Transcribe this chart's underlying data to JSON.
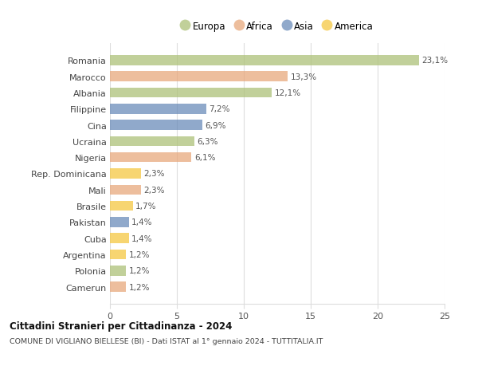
{
  "categories": [
    "Romania",
    "Marocco",
    "Albania",
    "Filippine",
    "Cina",
    "Ucraina",
    "Nigeria",
    "Rep. Dominicana",
    "Mali",
    "Brasile",
    "Pakistan",
    "Cuba",
    "Argentina",
    "Polonia",
    "Camerun"
  ],
  "values": [
    23.1,
    13.3,
    12.1,
    7.2,
    6.9,
    6.3,
    6.1,
    2.3,
    2.3,
    1.7,
    1.4,
    1.4,
    1.2,
    1.2,
    1.2
  ],
  "labels": [
    "23,1%",
    "13,3%",
    "12,1%",
    "7,2%",
    "6,9%",
    "6,3%",
    "6,1%",
    "2,3%",
    "2,3%",
    "1,7%",
    "1,4%",
    "1,4%",
    "1,2%",
    "1,2%",
    "1,2%"
  ],
  "continents": [
    "Europa",
    "Africa",
    "Europa",
    "Asia",
    "Asia",
    "Europa",
    "Africa",
    "America",
    "Africa",
    "America",
    "Asia",
    "America",
    "America",
    "Europa",
    "Africa"
  ],
  "colors": {
    "Europa": "#adc178",
    "Africa": "#e8a87c",
    "Asia": "#6b8cba",
    "America": "#f5c842"
  },
  "legend_order": [
    "Europa",
    "Africa",
    "Asia",
    "America"
  ],
  "title1": "Cittadini Stranieri per Cittadinanza - 2024",
  "title2": "COMUNE DI VIGLIANO BIELLESE (BI) - Dati ISTAT al 1° gennaio 2024 - TUTTITALIA.IT",
  "xlim": [
    0,
    25
  ],
  "xticks": [
    0,
    5,
    10,
    15,
    20,
    25
  ],
  "background_color": "#ffffff",
  "grid_color": "#dddddd",
  "bar_alpha": 0.75
}
